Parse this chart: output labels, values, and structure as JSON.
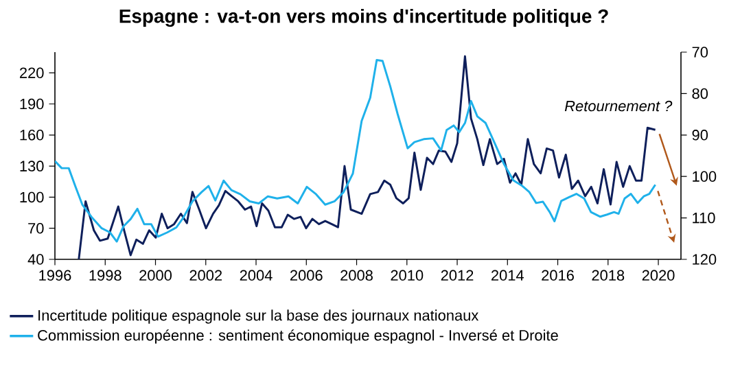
{
  "chart_data": {
    "type": "line",
    "title": "Espagne : va-t-on vers moins d'incertitude politique ?",
    "annotations": [
      "Retournement ?"
    ],
    "xlim": [
      1996,
      2020.9
    ],
    "xticks": [
      1996,
      1998,
      2000,
      2002,
      2004,
      2006,
      2008,
      2010,
      2012,
      2014,
      2016,
      2018,
      2020
    ],
    "ylim": [
      40,
      240
    ],
    "yticks": [
      40,
      70,
      100,
      130,
      160,
      190,
      220
    ],
    "y2lim": [
      120,
      70
    ],
    "y2ticks": [
      70,
      80,
      90,
      100,
      110,
      120
    ],
    "legend": "bottom",
    "grid": false,
    "marker": "none",
    "line_style": "solid",
    "series": [
      {
        "name": "Incertitude politique espagnole sur la base des journaux nationaux",
        "color": "#0e1f5b",
        "x": [
          1996.95,
          1997.22,
          1997.55,
          1997.79,
          1998.1,
          1998.52,
          1998.73,
          1999.01,
          1999.24,
          1999.5,
          1999.75,
          2000.01,
          2000.25,
          2000.48,
          2000.74,
          2001.01,
          2001.25,
          2001.47,
          2001.74,
          2002.01,
          2002.29,
          2002.52,
          2002.78,
          2003.03,
          2003.29,
          2003.56,
          2003.8,
          2004.02,
          2004.24,
          2004.49,
          2004.75,
          2005.02,
          2005.26,
          2005.51,
          2005.77,
          2005.99,
          2006.24,
          2006.5,
          2006.75,
          2007.01,
          2007.26,
          2007.52,
          2007.77,
          2008.2,
          2008.54,
          2008.85,
          2009.1,
          2009.34,
          2009.58,
          2009.85,
          2010.07,
          2010.3,
          2010.55,
          2010.8,
          2011.04,
          2011.27,
          2011.53,
          2011.77,
          2012.0,
          2012.31,
          2012.55,
          2012.8,
          2013.04,
          2013.3,
          2013.59,
          2013.86,
          2014.1,
          2014.32,
          2014.55,
          2014.81,
          2015.05,
          2015.32,
          2015.56,
          2015.81,
          2016.05,
          2016.32,
          2016.56,
          2016.81,
          2017.09,
          2017.33,
          2017.58,
          2017.83,
          2018.1,
          2018.34,
          2018.6,
          2018.86,
          2019.11,
          2019.33,
          2019.57,
          2019.88
        ],
        "values": [
          40,
          96,
          68,
          58,
          60,
          91,
          70,
          44,
          59,
          55,
          68,
          61,
          84,
          70,
          74,
          84,
          75,
          105,
          88,
          70,
          84,
          92,
          106,
          101,
          96,
          88,
          91,
          72,
          94,
          87,
          71,
          71,
          83,
          79,
          81,
          70,
          79,
          74,
          77,
          74,
          71,
          130,
          88,
          84,
          103,
          105,
          116,
          112,
          99,
          94,
          99,
          143,
          107,
          138,
          132,
          145,
          144,
          134,
          152,
          236,
          176,
          156,
          131,
          156,
          132,
          137,
          114,
          123,
          112,
          156,
          132,
          123,
          147,
          145,
          119,
          141,
          108,
          116,
          101,
          110,
          94,
          127,
          93,
          134,
          110,
          130,
          116,
          116,
          167,
          165
        ]
      },
      {
        "name": "Commission européenne : sentiment économique espagnol - Inversé et Droite",
        "color": "#1fb1ea",
        "axis": "y2",
        "x": [
          1996.0,
          1996.27,
          1996.55,
          1996.82,
          1997.09,
          1997.46,
          1997.86,
          1998.19,
          1998.46,
          1998.73,
          1999.01,
          1999.28,
          1999.55,
          1999.83,
          2000.1,
          2000.47,
          2000.83,
          2001.1,
          2001.47,
          2001.83,
          2002.11,
          2002.38,
          2002.71,
          2003.02,
          2003.38,
          2003.75,
          2004.11,
          2004.47,
          2004.84,
          2005.29,
          2005.66,
          2006.02,
          2006.39,
          2006.75,
          2007.12,
          2007.48,
          2007.85,
          2008.2,
          2008.54,
          2008.8,
          2009.03,
          2009.34,
          2009.63,
          2010.03,
          2010.3,
          2010.67,
          2011.04,
          2011.36,
          2011.58,
          2011.86,
          2012.08,
          2012.31,
          2012.55,
          2012.8,
          2013.13,
          2013.5,
          2013.86,
          2014.23,
          2014.59,
          2014.86,
          2015.14,
          2015.41,
          2015.68,
          2015.87,
          2016.14,
          2016.45,
          2016.74,
          2017.05,
          2017.32,
          2017.69,
          2017.96,
          2018.24,
          2018.42,
          2018.66,
          2018.91,
          2019.18,
          2019.42,
          2019.64,
          2019.88
        ],
        "values": [
          96.3,
          98,
          98,
          102.5,
          106.8,
          109.8,
          112.5,
          113.5,
          115.7,
          112,
          110.3,
          107.8,
          111.5,
          111.5,
          114.5,
          113.5,
          112.3,
          110,
          106,
          103.8,
          102.3,
          105.8,
          101,
          103.3,
          104.3,
          106,
          106.5,
          104.8,
          105.3,
          104.8,
          106.5,
          102.5,
          104.3,
          106.8,
          106,
          103.8,
          99.3,
          86.6,
          81,
          71.9,
          72.1,
          78.3,
          84.9,
          93.2,
          91.7,
          91,
          90.8,
          93.7,
          88.8,
          87.7,
          89.3,
          87.1,
          81.8,
          85.5,
          87.1,
          92.1,
          97,
          100.9,
          102.3,
          103.7,
          106.4,
          106.1,
          108.6,
          110.8,
          105.9,
          105,
          104.2,
          105.3,
          108.6,
          109.7,
          109.2,
          108.6,
          109,
          105.3,
          104.2,
          106.4,
          104.8,
          104.2,
          102
        ]
      }
    ]
  }
}
